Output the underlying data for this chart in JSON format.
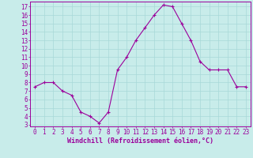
{
  "x": [
    0,
    1,
    2,
    3,
    4,
    5,
    6,
    7,
    8,
    9,
    10,
    11,
    12,
    13,
    14,
    15,
    16,
    17,
    18,
    19,
    20,
    21,
    22,
    23
  ],
  "y": [
    7.5,
    8.0,
    8.0,
    7.0,
    6.5,
    4.5,
    4.0,
    3.2,
    4.5,
    9.5,
    11.0,
    13.0,
    14.5,
    16.0,
    17.2,
    17.0,
    15.0,
    13.0,
    10.5,
    9.5,
    9.5,
    9.5,
    7.5,
    7.5
  ],
  "line_color": "#9b009b",
  "marker": "+",
  "marker_size": 3,
  "marker_linewidth": 0.8,
  "line_width": 0.8,
  "background_color": "#c8ecea",
  "grid_color": "#a8d8d8",
  "ylabel_ticks": [
    3,
    4,
    5,
    6,
    7,
    8,
    9,
    10,
    11,
    12,
    13,
    14,
    15,
    16,
    17
  ],
  "ylim": [
    2.8,
    17.6
  ],
  "xlim": [
    -0.5,
    23.5
  ],
  "xlabel": "Windchill (Refroidissement éolien,°C)",
  "xlabel_color": "#9b009b",
  "tick_color": "#9b009b",
  "axis_color": "#9b009b",
  "font_size_ticks": 5.5,
  "font_size_label": 6.0
}
